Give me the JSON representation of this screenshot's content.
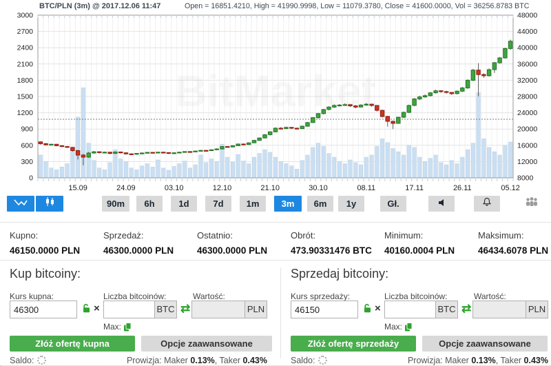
{
  "chart": {
    "title": "BTC/PLN (3m) @ 2017.12.06 11:47",
    "ohlc_summary": "Open = 16851.4210, High = 41990.9998, Low = 11079.3780, Close = 41600.0000, Vol = 36256.8783 BTC",
    "watermark": "BitMarket"
  },
  "chart_data": {
    "type": "candlestick+volume",
    "title": "BTC/PLN (3m)",
    "price_axis": {
      "min": 8000,
      "max": 48000,
      "step": 4000,
      "side": "right"
    },
    "volume_axis": {
      "min": 0,
      "max": 3000,
      "step": 300,
      "side": "left"
    },
    "dotted_line_price": 22400,
    "grid": true,
    "x_ticks": [
      {
        "day": 7,
        "label": "15.09"
      },
      {
        "day": 16,
        "label": "24.09"
      },
      {
        "day": 25,
        "label": "03.10"
      },
      {
        "day": 34,
        "label": "12.10"
      },
      {
        "day": 43,
        "label": "21.10"
      },
      {
        "day": 52,
        "label": "30.10"
      },
      {
        "day": 61,
        "label": "08.11"
      },
      {
        "day": 70,
        "label": "17.11"
      },
      {
        "day": 79,
        "label": "26.11"
      },
      {
        "day": 88,
        "label": "05.12"
      }
    ],
    "candles_format": [
      "open",
      "high",
      "low",
      "close",
      "volume"
    ],
    "candles": [
      [
        16851,
        17000,
        16150,
        16400,
        420
      ],
      [
        16400,
        16550,
        15950,
        16100,
        300
      ],
      [
        16100,
        16400,
        16000,
        16250,
        180
      ],
      [
        16250,
        16350,
        15750,
        15900,
        150
      ],
      [
        15900,
        16050,
        15550,
        15700,
        200
      ],
      [
        15700,
        15800,
        15350,
        15500,
        260
      ],
      [
        15500,
        15600,
        14450,
        14700,
        520
      ],
      [
        14700,
        14900,
        12500,
        13600,
        1120
      ],
      [
        13600,
        13900,
        11079,
        13100,
        1660
      ],
      [
        13100,
        14350,
        12900,
        14100,
        640
      ],
      [
        14100,
        14600,
        13950,
        14400,
        320
      ],
      [
        14400,
        14500,
        14000,
        14200,
        180
      ],
      [
        14200,
        14450,
        14050,
        14300,
        150
      ],
      [
        14300,
        14350,
        13800,
        14000,
        280
      ],
      [
        14000,
        14500,
        13900,
        14350,
        520
      ],
      [
        14350,
        14450,
        14000,
        14150,
        350
      ],
      [
        14150,
        14250,
        13700,
        13900,
        300
      ],
      [
        13900,
        14000,
        13650,
        13800,
        180
      ],
      [
        13800,
        14100,
        13700,
        14000,
        150
      ],
      [
        14000,
        14250,
        13900,
        14100,
        220
      ],
      [
        14100,
        14350,
        14000,
        14250,
        260
      ],
      [
        14250,
        14300,
        14000,
        14150,
        200
      ],
      [
        14150,
        14400,
        14050,
        14300,
        330
      ],
      [
        14300,
        14400,
        14050,
        14200,
        180
      ],
      [
        14200,
        14300,
        13850,
        14000,
        140
      ],
      [
        14000,
        14300,
        13900,
        14150,
        210
      ],
      [
        14150,
        14400,
        14050,
        14300,
        260
      ],
      [
        14300,
        14550,
        14200,
        14450,
        310
      ],
      [
        14450,
        14550,
        14250,
        14400,
        180
      ],
      [
        14400,
        14700,
        14300,
        14600,
        240
      ],
      [
        14600,
        14850,
        14500,
        14750,
        420
      ],
      [
        14750,
        14850,
        14550,
        14700,
        280
      ],
      [
        14700,
        15000,
        14600,
        14900,
        350
      ],
      [
        14900,
        15250,
        14800,
        15100,
        300
      ],
      [
        15100,
        15850,
        15000,
        15700,
        620
      ],
      [
        15700,
        15800,
        15450,
        15600,
        380
      ],
      [
        15600,
        16000,
        15500,
        15900,
        290
      ],
      [
        15900,
        16450,
        15800,
        16300,
        430
      ],
      [
        16300,
        16450,
        16000,
        16200,
        310
      ],
      [
        16200,
        16750,
        16100,
        16600,
        260
      ],
      [
        16600,
        17350,
        16500,
        17200,
        380
      ],
      [
        17200,
        17950,
        17100,
        17800,
        450
      ],
      [
        17800,
        18750,
        17700,
        18600,
        520
      ],
      [
        18600,
        19450,
        18400,
        19300,
        470
      ],
      [
        19300,
        20400,
        19200,
        20200,
        380
      ],
      [
        20200,
        20500,
        19900,
        20100,
        300
      ],
      [
        20100,
        20600,
        20000,
        20400,
        260
      ],
      [
        20400,
        20500,
        20000,
        20200,
        220
      ],
      [
        20200,
        20350,
        19900,
        20100,
        160
      ],
      [
        20100,
        20850,
        20000,
        20700,
        320
      ],
      [
        20700,
        21750,
        20600,
        21600,
        420
      ],
      [
        21600,
        22950,
        21500,
        22800,
        560
      ],
      [
        22800,
        23950,
        22600,
        23800,
        640
      ],
      [
        23800,
        24950,
        23600,
        24800,
        580
      ],
      [
        24800,
        25600,
        24600,
        25400,
        450
      ],
      [
        25400,
        26050,
        25200,
        25800,
        380
      ],
      [
        25800,
        26150,
        25550,
        25900,
        300
      ],
      [
        25900,
        26300,
        25700,
        26000,
        260
      ],
      [
        26000,
        26100,
        25450,
        25700,
        330
      ],
      [
        25700,
        25900,
        25100,
        25400,
        280
      ],
      [
        25400,
        26100,
        25300,
        25900,
        240
      ],
      [
        25900,
        26400,
        25700,
        26100,
        380
      ],
      [
        26100,
        26250,
        25500,
        25800,
        420
      ],
      [
        25800,
        25900,
        24300,
        24600,
        580
      ],
      [
        24600,
        24750,
        22800,
        23100,
        720
      ],
      [
        23100,
        23250,
        20600,
        21900,
        650
      ],
      [
        21900,
        22100,
        20000,
        21400,
        540
      ],
      [
        21400,
        23050,
        21300,
        22900,
        480
      ],
      [
        22900,
        24300,
        22700,
        24100,
        420
      ],
      [
        24100,
        26000,
        23900,
        25800,
        600
      ],
      [
        25800,
        27600,
        25600,
        27400,
        560
      ],
      [
        27400,
        28200,
        27100,
        27900,
        380
      ],
      [
        27900,
        28550,
        27700,
        28200,
        300
      ],
      [
        28200,
        29100,
        28000,
        28900,
        360
      ],
      [
        28900,
        29700,
        28700,
        29400,
        420
      ],
      [
        29400,
        29600,
        28900,
        29200,
        280
      ],
      [
        29200,
        29400,
        28700,
        29000,
        240
      ],
      [
        29000,
        29100,
        28400,
        28700,
        320
      ],
      [
        28700,
        29500,
        28500,
        29300,
        260
      ],
      [
        29300,
        30350,
        29100,
        30100,
        380
      ],
      [
        30100,
        32200,
        29900,
        32000,
        520
      ],
      [
        32000,
        34800,
        31800,
        34500,
        640
      ],
      [
        34500,
        36200,
        28000,
        33400,
        1570
      ],
      [
        33400,
        33700,
        32600,
        33100,
        720
      ],
      [
        33100,
        34900,
        32900,
        34600,
        560
      ],
      [
        34600,
        36500,
        33800,
        36300,
        480
      ],
      [
        36300,
        37700,
        36100,
        37500,
        420
      ],
      [
        37500,
        40000,
        37300,
        39800,
        600
      ],
      [
        39800,
        41990,
        39500,
        41600,
        660
      ]
    ],
    "colors": {
      "up": "#3fa53f",
      "down": "#cc3322",
      "volume": "#cbdff2"
    }
  },
  "toolbar": {
    "timeframes": [
      {
        "label": "90m"
      },
      {
        "label": "6h"
      },
      {
        "label": "1d"
      },
      {
        "label": "7d"
      },
      {
        "label": "1m"
      },
      {
        "label": "3m",
        "active": true
      },
      {
        "label": "6m"
      },
      {
        "label": "1y"
      },
      {
        "label": "Gł."
      }
    ]
  },
  "summary": {
    "cells": [
      {
        "label": "Kupno:",
        "value": "46150.0000 PLN"
      },
      {
        "label": "Sprzedaż:",
        "value": "46300.0000 PLN"
      },
      {
        "label": "Ostatnio:",
        "value": "46300.0000 PLN"
      },
      {
        "label": "Obrót:",
        "value": "473.90331476 BTC"
      },
      {
        "label": "Minimum:",
        "value": "40160.0004 PLN"
      },
      {
        "label": "Maksimum:",
        "value": "46434.6078 PLN"
      }
    ]
  },
  "buy_panel": {
    "heading": "Kup bitcoiny:",
    "rate_label": "Kurs kupna:",
    "rate_value": "46300",
    "amount_label": "Liczba bitcoinów:",
    "amount_value": "",
    "amount_unit": "BTC",
    "value_label": "Wartość:",
    "value_value": "",
    "value_unit": "PLN",
    "max_label": "Max:",
    "submit_label": "Złóż ofertę kupna",
    "advanced_label": "Opcje zaawansowane",
    "saldo_label": "Saldo:"
  },
  "sell_panel": {
    "heading": "Sprzedaj bitcoiny:",
    "rate_label": "Kurs sprzedaży:",
    "rate_value": "46150",
    "amount_label": "Liczba bitcoinów:",
    "amount_value": "",
    "amount_unit": "BTC",
    "value_label": "Wartość:",
    "value_value": "",
    "value_unit": "PLN",
    "max_label": "Max:",
    "submit_label": "Złóż ofertę sprzedaży",
    "advanced_label": "Opcje zaawansowane",
    "saldo_label": "Saldo:"
  },
  "fees": {
    "p1": "Prowizja: Maker ",
    "v1": "0.13%",
    "p2": ", Taker ",
    "v2": "0.43%"
  }
}
